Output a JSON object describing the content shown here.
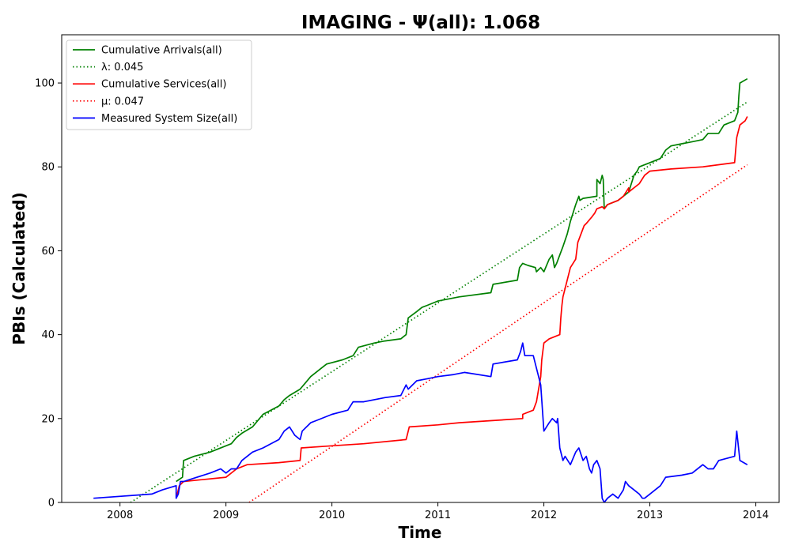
{
  "chart_data": {
    "type": "line",
    "title": "IMAGING -  Ψ(all): 1.068",
    "xlabel": "Time",
    "ylabel": "PBIs (Calculated)",
    "xlim": [
      2007.45,
      2014.22
    ],
    "ylim": [
      0,
      111.5
    ],
    "xticks": [
      2008,
      2009,
      2010,
      2011,
      2012,
      2013,
      2014
    ],
    "xtick_labels": [
      "2008",
      "2009",
      "2010",
      "2011",
      "2012",
      "2013",
      "2014"
    ],
    "yticks": [
      0,
      20,
      40,
      60,
      80,
      100
    ],
    "ytick_labels": [
      "0",
      "20",
      "40",
      "60",
      "80",
      "100"
    ],
    "grid": false,
    "legend_position": "upper-left",
    "series": [
      {
        "name": "Cumulative Arrivals(all)",
        "color": "#008000",
        "style": "solid",
        "x": [
          2008.53,
          2008.59,
          2008.6,
          2008.7,
          2008.85,
          2009.0,
          2009.05,
          2009.1,
          2009.15,
          2009.25,
          2009.35,
          2009.5,
          2009.55,
          2009.6,
          2009.7,
          2009.75,
          2009.8,
          2009.9,
          2009.95,
          2010.1,
          2010.2,
          2010.25,
          2010.4,
          2010.5,
          2010.65,
          2010.7,
          2010.72,
          2010.8,
          2010.85,
          2010.9,
          2011.0,
          2011.2,
          2011.5,
          2011.52,
          2011.75,
          2011.77,
          2011.8,
          2011.85,
          2011.92,
          2011.93,
          2011.97,
          2012.0,
          2012.05,
          2012.08,
          2012.1,
          2012.12,
          2012.15,
          2012.18,
          2012.22,
          2012.25,
          2012.3,
          2012.33,
          2012.34,
          2012.37,
          2012.5,
          2012.5,
          2012.53,
          2012.55,
          2012.56,
          2012.57,
          2012.6,
          2012.7,
          2012.8,
          2012.85,
          2012.88,
          2012.9,
          2013.0,
          2013.1,
          2013.15,
          2013.2,
          2013.3,
          2013.4,
          2013.5,
          2013.55,
          2013.65,
          2013.7,
          2013.8,
          2013.83,
          2013.84,
          2013.85,
          2013.92
        ],
        "y": [
          5,
          6,
          10,
          11,
          12,
          13.5,
          14,
          15.5,
          16.5,
          18,
          21,
          23,
          24.5,
          25.5,
          27,
          28.5,
          30,
          32,
          33,
          34,
          35,
          37,
          38,
          38.5,
          39,
          40,
          44,
          45.5,
          46.5,
          47,
          48,
          49,
          50,
          52,
          53,
          56,
          57,
          56.5,
          56,
          55,
          56,
          55,
          58,
          59,
          56,
          57,
          59,
          61,
          64,
          67,
          71,
          73,
          72,
          72.5,
          73,
          77,
          76,
          78,
          77,
          70,
          71,
          72,
          74,
          78,
          79,
          80,
          81,
          82,
          84,
          85,
          85.5,
          86,
          86.5,
          88,
          88,
          90,
          91,
          93,
          97,
          100,
          101
        ]
      },
      {
        "name": "λ: 0.045",
        "color": "#008000",
        "style": "dotted",
        "x": [
          2008.1,
          2013.92
        ],
        "y": [
          0,
          95.5
        ]
      },
      {
        "name": "Cumulative Services(all)",
        "color": "#ff0000",
        "style": "solid",
        "x": [
          2008.53,
          2008.56,
          2008.6,
          2009.0,
          2009.1,
          2009.2,
          2009.5,
          2009.7,
          2009.71,
          2010.0,
          2010.3,
          2010.7,
          2010.72,
          2010.73,
          2011.0,
          2011.2,
          2011.5,
          2011.8,
          2011.8,
          2011.9,
          2011.93,
          2011.95,
          2011.97,
          2011.98,
          2012.0,
          2012.05,
          2012.15,
          2012.16,
          2012.17,
          2012.18,
          2012.2,
          2012.25,
          2012.3,
          2012.32,
          2012.35,
          2012.38,
          2012.4,
          2012.45,
          2012.48,
          2012.5,
          2012.55,
          2012.57,
          2012.6,
          2012.7,
          2012.75,
          2012.8,
          2012.8,
          2012.9,
          2012.95,
          2013.0,
          2013.2,
          2013.5,
          2013.8,
          2013.82,
          2013.85,
          2013.9,
          2013.92
        ],
        "y": [
          1,
          4,
          5,
          6,
          8,
          9,
          9.5,
          10,
          13,
          13.5,
          14,
          15,
          17,
          18,
          18.5,
          19,
          19.5,
          20,
          21,
          22,
          24,
          27,
          30,
          34,
          38,
          39,
          40,
          44,
          47,
          49,
          51,
          56,
          58,
          62,
          64,
          66,
          66.5,
          68,
          69,
          70,
          70.5,
          70,
          71,
          72,
          73,
          75,
          74,
          76,
          78,
          79,
          79.5,
          80,
          81,
          87,
          90,
          91,
          92
        ]
      },
      {
        "name": "μ: 0.047",
        "color": "#ff0000",
        "style": "dotted",
        "x": [
          2009.22,
          2013.92
        ],
        "y": [
          0,
          80.5
        ]
      },
      {
        "name": "Measured System Size(all)",
        "color": "#0000ff",
        "style": "solid",
        "x": [
          2007.75,
          2008.3,
          2008.4,
          2008.53,
          2008.53,
          2008.55,
          2008.57,
          2008.6,
          2008.85,
          2008.95,
          2009.0,
          2009.05,
          2009.1,
          2009.15,
          2009.25,
          2009.35,
          2009.5,
          2009.55,
          2009.6,
          2009.65,
          2009.7,
          2009.72,
          2009.8,
          2009.85,
          2010.0,
          2010.15,
          2010.2,
          2010.3,
          2010.5,
          2010.65,
          2010.7,
          2010.72,
          2010.8,
          2010.9,
          2011.0,
          2011.15,
          2011.25,
          2011.5,
          2011.52,
          2011.75,
          2011.78,
          2011.8,
          2011.82,
          2011.9,
          2011.93,
          2011.97,
          2012.0,
          2012.05,
          2012.08,
          2012.12,
          2012.13,
          2012.15,
          2012.18,
          2012.2,
          2012.25,
          2012.3,
          2012.33,
          2012.37,
          2012.4,
          2012.43,
          2012.45,
          2012.47,
          2012.5,
          2012.53,
          2012.55,
          2012.57,
          2012.6,
          2012.65,
          2012.7,
          2012.75,
          2012.77,
          2012.8,
          2012.85,
          2012.9,
          2012.93,
          2012.95,
          2013.0,
          2013.05,
          2013.1,
          2013.15,
          2013.3,
          2013.4,
          2013.5,
          2013.55,
          2013.6,
          2013.65,
          2013.8,
          2013.82,
          2013.85,
          2013.92
        ],
        "y": [
          1,
          2,
          3,
          4,
          1,
          2,
          5,
          5,
          7,
          8,
          7,
          8,
          8,
          10,
          12,
          13,
          15,
          17,
          18,
          16,
          15,
          17,
          19,
          19.5,
          21,
          22,
          24,
          24,
          25,
          25.5,
          28,
          27,
          29,
          29.5,
          30,
          30.5,
          31,
          30,
          33,
          34,
          36,
          38,
          35,
          35,
          32,
          28,
          17,
          19,
          20,
          19,
          20,
          13,
          10,
          11,
          9,
          12,
          13,
          10,
          11,
          8,
          7,
          9,
          10,
          8,
          1,
          0,
          1,
          2,
          1,
          3,
          5,
          4,
          3,
          2,
          1,
          1,
          2,
          3,
          4,
          6,
          6.5,
          7,
          9,
          8,
          8,
          10,
          11,
          17,
          10,
          9
        ]
      }
    ]
  }
}
